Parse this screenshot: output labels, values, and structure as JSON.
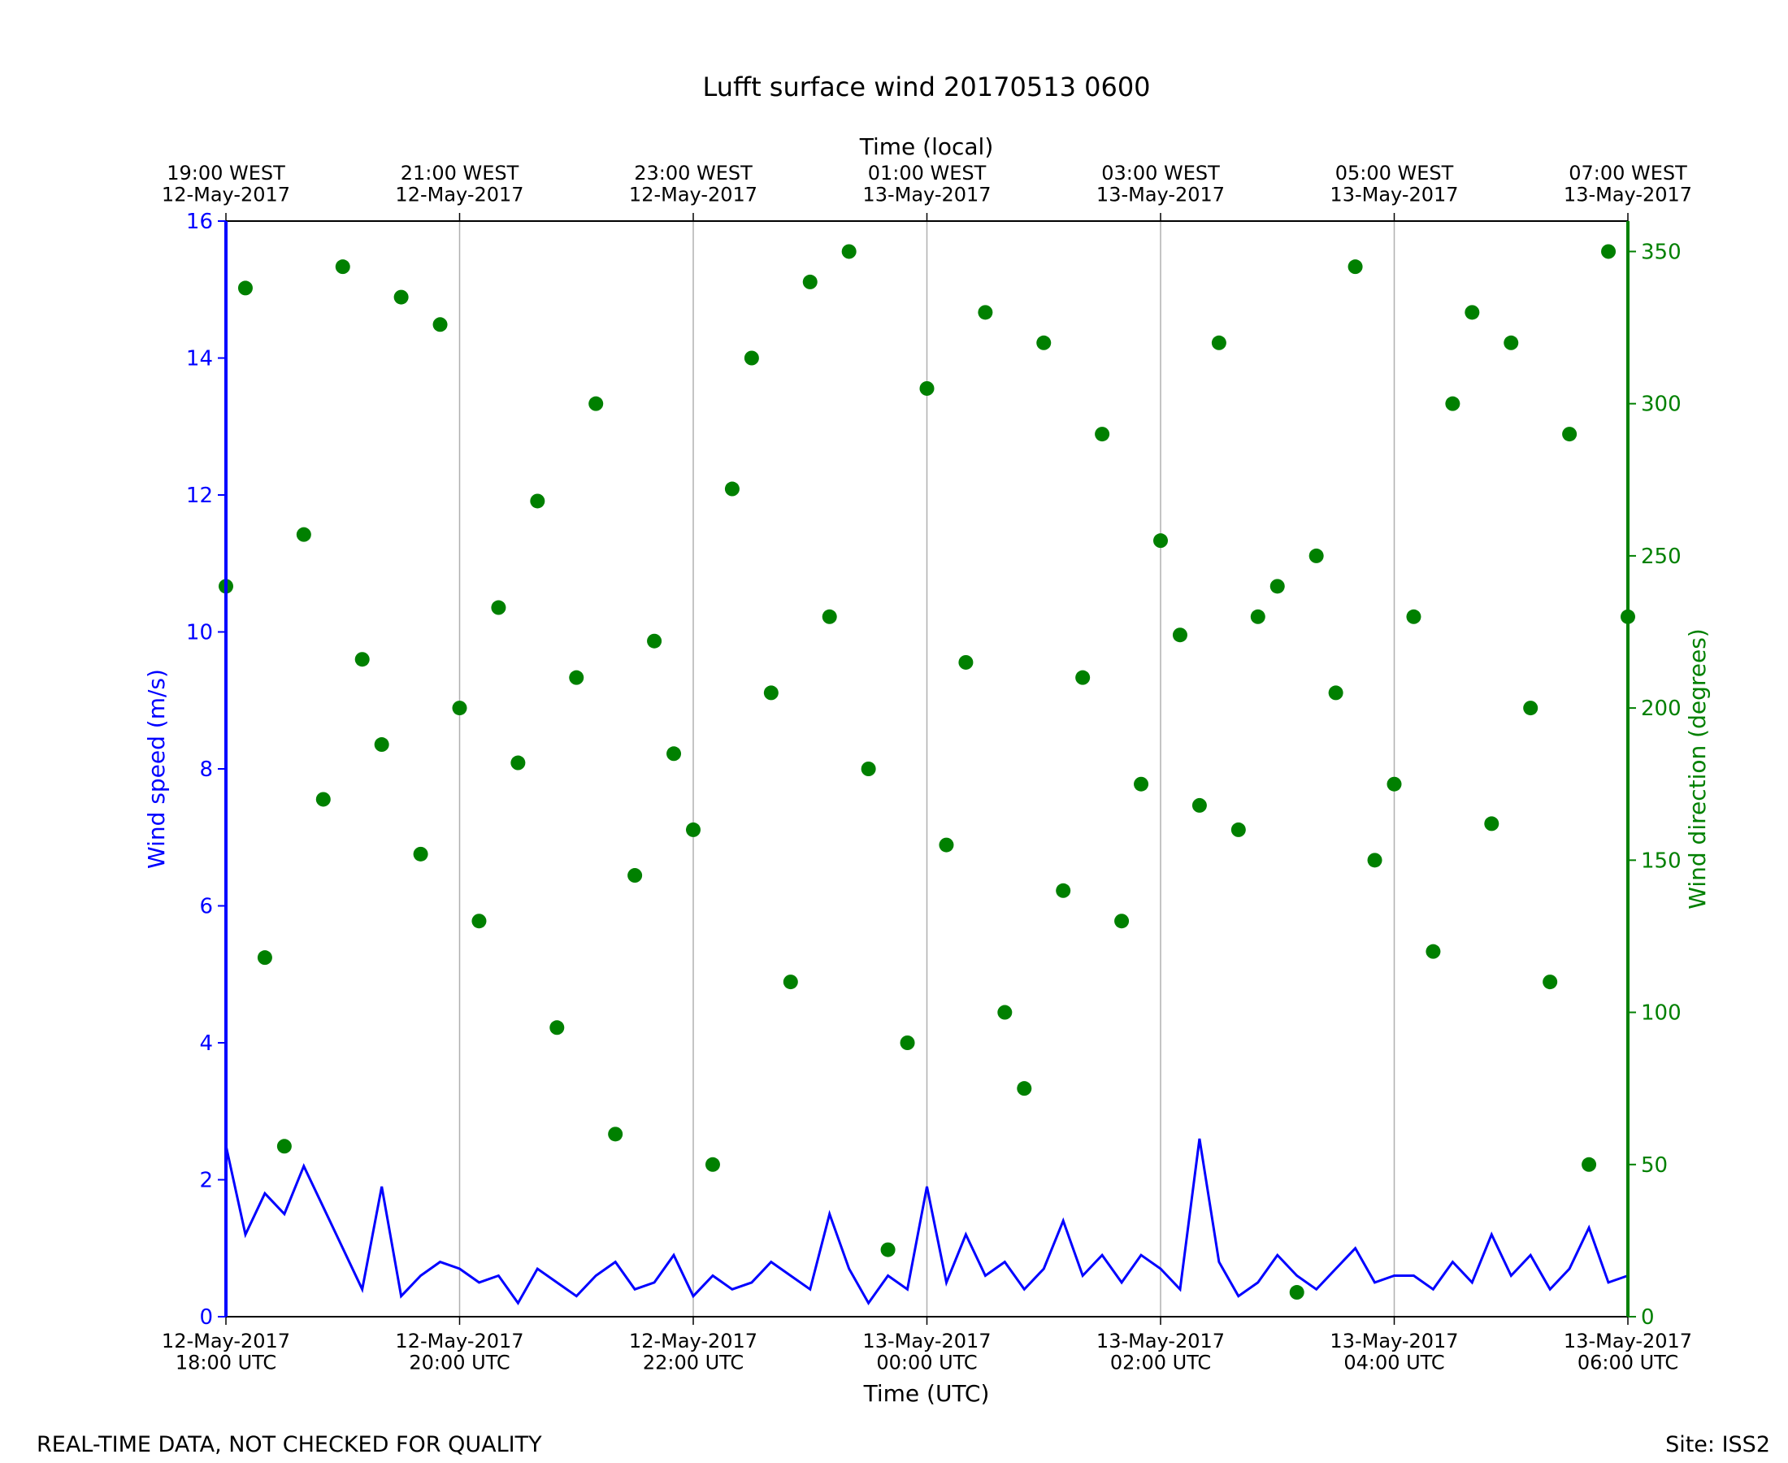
{
  "chart_data": {
    "type": "line-scatter",
    "title": "Lufft surface wind 20170513 0600",
    "xlabel": "Time (UTC)",
    "x2label": "Time (local)",
    "ylabel": "Wind speed (m/s)",
    "y2label": "Wind direction (degrees)",
    "footer_left": "REAL-TIME DATA, NOT CHECKED FOR QUALITY",
    "footer_right": "Site: ISS2",
    "xlim": [
      "2017-05-12T18:00Z",
      "2017-05-13T06:00Z"
    ],
    "xticks": [
      {
        "value": "2017-05-12T18:00Z",
        "label": "12-May-2017\n18:00 UTC"
      },
      {
        "value": "2017-05-12T20:00Z",
        "label": "12-May-2017\n20:00 UTC"
      },
      {
        "value": "2017-05-12T22:00Z",
        "label": "12-May-2017\n22:00 UTC"
      },
      {
        "value": "2017-05-13T00:00Z",
        "label": "13-May-2017\n00:00 UTC"
      },
      {
        "value": "2017-05-13T02:00Z",
        "label": "13-May-2017\n02:00 UTC"
      },
      {
        "value": "2017-05-13T04:00Z",
        "label": "13-May-2017\n04:00 UTC"
      },
      {
        "value": "2017-05-13T06:00Z",
        "label": "13-May-2017\n06:00 UTC"
      }
    ],
    "x2ticks": [
      {
        "value": "2017-05-12T18:00Z",
        "label": "19:00 WEST\n12-May-2017"
      },
      {
        "value": "2017-05-12T20:00Z",
        "label": "21:00 WEST\n12-May-2017"
      },
      {
        "value": "2017-05-12T22:00Z",
        "label": "23:00 WEST\n12-May-2017"
      },
      {
        "value": "2017-05-13T00:00Z",
        "label": "01:00 WEST\n13-May-2017"
      },
      {
        "value": "2017-05-13T02:00Z",
        "label": "03:00 WEST\n13-May-2017"
      },
      {
        "value": "2017-05-13T04:00Z",
        "label": "05:00 WEST\n13-May-2017"
      },
      {
        "value": "2017-05-13T06:00Z",
        "label": "07:00 WEST\n13-May-2017"
      }
    ],
    "ylim": [
      0,
      16
    ],
    "yticks": [
      0,
      2,
      4,
      6,
      8,
      10,
      12,
      14,
      16
    ],
    "y2lim": [
      0,
      360
    ],
    "y2ticks": [
      0,
      50,
      100,
      150,
      200,
      250,
      300,
      350
    ],
    "grid": "x",
    "x": [
      "2017-05-12T18:00Z",
      "2017-05-12T18:10Z",
      "2017-05-12T18:20Z",
      "2017-05-12T18:30Z",
      "2017-05-12T18:40Z",
      "2017-05-12T18:50Z",
      "2017-05-12T19:00Z",
      "2017-05-12T19:10Z",
      "2017-05-12T19:20Z",
      "2017-05-12T19:30Z",
      "2017-05-12T19:40Z",
      "2017-05-12T19:50Z",
      "2017-05-12T20:00Z",
      "2017-05-12T20:10Z",
      "2017-05-12T20:20Z",
      "2017-05-12T20:30Z",
      "2017-05-12T20:40Z",
      "2017-05-12T20:50Z",
      "2017-05-12T21:00Z",
      "2017-05-12T21:10Z",
      "2017-05-12T21:20Z",
      "2017-05-12T21:30Z",
      "2017-05-12T21:40Z",
      "2017-05-12T21:50Z",
      "2017-05-12T22:00Z",
      "2017-05-12T22:10Z",
      "2017-05-12T22:20Z",
      "2017-05-12T22:30Z",
      "2017-05-12T22:40Z",
      "2017-05-12T22:50Z",
      "2017-05-12T23:00Z",
      "2017-05-12T23:10Z",
      "2017-05-12T23:20Z",
      "2017-05-12T23:30Z",
      "2017-05-12T23:40Z",
      "2017-05-12T23:50Z",
      "2017-05-13T00:00Z",
      "2017-05-13T00:10Z",
      "2017-05-13T00:20Z",
      "2017-05-13T00:30Z",
      "2017-05-13T00:40Z",
      "2017-05-13T00:50Z",
      "2017-05-13T01:00Z",
      "2017-05-13T01:10Z",
      "2017-05-13T01:20Z",
      "2017-05-13T01:30Z",
      "2017-05-13T01:40Z",
      "2017-05-13T01:50Z",
      "2017-05-13T02:00Z",
      "2017-05-13T02:10Z",
      "2017-05-13T02:20Z",
      "2017-05-13T02:30Z",
      "2017-05-13T02:40Z",
      "2017-05-13T02:50Z",
      "2017-05-13T03:00Z",
      "2017-05-13T03:10Z",
      "2017-05-13T03:20Z",
      "2017-05-13T03:30Z",
      "2017-05-13T03:40Z",
      "2017-05-13T03:50Z",
      "2017-05-13T04:00Z",
      "2017-05-13T04:10Z",
      "2017-05-13T04:20Z",
      "2017-05-13T04:30Z",
      "2017-05-13T04:40Z",
      "2017-05-13T04:50Z",
      "2017-05-13T05:00Z",
      "2017-05-13T05:10Z",
      "2017-05-13T05:20Z",
      "2017-05-13T05:30Z",
      "2017-05-13T05:40Z",
      "2017-05-13T05:50Z",
      "2017-05-13T06:00Z"
    ],
    "series": [
      {
        "name": "Wind speed",
        "color": "#0000ff",
        "axis": "y",
        "kind": "line",
        "values": [
          2.5,
          1.2,
          1.8,
          1.5,
          2.2,
          1.6,
          1.0,
          0.4,
          1.9,
          0.3,
          0.6,
          0.8,
          0.7,
          0.5,
          0.6,
          0.2,
          0.7,
          0.5,
          0.3,
          0.6,
          0.8,
          0.4,
          0.5,
          0.9,
          0.3,
          0.6,
          0.4,
          0.5,
          0.8,
          0.6,
          0.4,
          1.5,
          0.7,
          0.2,
          0.6,
          0.4,
          1.9,
          0.5,
          1.2,
          0.6,
          0.8,
          0.4,
          0.7,
          1.4,
          0.6,
          0.9,
          0.5,
          0.9,
          0.7,
          0.4,
          2.6,
          0.8,
          0.3,
          0.5,
          0.9,
          0.6,
          0.4,
          0.7,
          1.0,
          0.5,
          0.6,
          0.6,
          0.4,
          0.8,
          0.5,
          1.2,
          0.6,
          0.9,
          0.4,
          0.7,
          1.3,
          0.5,
          0.6
        ]
      },
      {
        "name": "Wind direction",
        "color": "#008000",
        "axis": "y2",
        "kind": "scatter",
        "values": [
          240,
          338,
          118,
          56,
          257,
          170,
          345,
          216,
          188,
          335,
          152,
          326,
          200,
          130,
          233,
          182,
          268,
          95,
          210,
          300,
          60,
          145,
          222,
          185,
          160,
          50,
          272,
          315,
          205,
          110,
          340,
          230,
          350,
          180,
          22,
          90,
          305,
          155,
          215,
          330,
          100,
          75,
          320,
          140,
          210,
          290,
          130,
          175,
          255,
          224,
          168,
          320,
          160,
          230,
          240,
          8,
          250,
          205,
          345,
          150,
          175,
          230,
          120,
          300,
          330,
          162,
          320,
          200,
          110,
          290,
          50,
          350,
          230
        ]
      }
    ]
  }
}
